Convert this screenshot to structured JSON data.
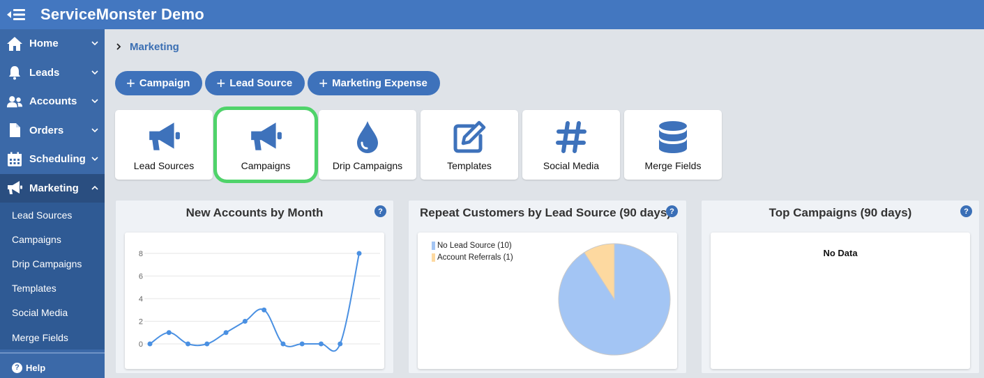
{
  "app": {
    "title": "ServiceMonster Demo"
  },
  "sidebar": {
    "items": [
      {
        "label": "Home",
        "icon": "home-icon"
      },
      {
        "label": "Leads",
        "icon": "bell-icon"
      },
      {
        "label": "Accounts",
        "icon": "users-icon"
      },
      {
        "label": "Orders",
        "icon": "file-icon"
      },
      {
        "label": "Scheduling",
        "icon": "calendar-icon"
      },
      {
        "label": "Marketing",
        "icon": "megaphone-icon"
      }
    ],
    "subitems": [
      "Lead Sources",
      "Campaigns",
      "Drip Campaigns",
      "Templates",
      "Social Media",
      "Merge Fields"
    ],
    "help_label": "Help",
    "help_icon_text": "?"
  },
  "breadcrumb": {
    "current": "Marketing"
  },
  "actions": [
    "Campaign",
    "Lead Source",
    "Marketing Expense"
  ],
  "tiles": [
    {
      "label": "Lead Sources",
      "icon": "megaphone-icon"
    },
    {
      "label": "Campaigns",
      "icon": "megaphone-icon"
    },
    {
      "label": "Drip Campaigns",
      "icon": "droplet-icon"
    },
    {
      "label": "Templates",
      "icon": "edit-icon"
    },
    {
      "label": "Social Media",
      "icon": "hashtag-icon"
    },
    {
      "label": "Merge Fields",
      "icon": "database-icon"
    }
  ],
  "panels": {
    "new_accounts": {
      "title": "New Accounts by Month"
    },
    "repeat_customers": {
      "title": "Repeat Customers by Lead Source (90 days)"
    },
    "top_campaigns": {
      "title": "Top Campaigns (90 days)",
      "empty_text": "No Data"
    }
  },
  "colors": {
    "topbar": "#4377c0",
    "sidebar": "#3b69a8",
    "accent": "#3e72bb",
    "selected_outline": "#4fd36a",
    "line": "#4a90e2",
    "pie_primary": "#a3c5f4",
    "pie_secondary": "#fdd9a0"
  },
  "chart_data": [
    {
      "type": "line",
      "title": "New Accounts by Month",
      "x": [
        1,
        2,
        3,
        4,
        5,
        6,
        7,
        8,
        9,
        10,
        11,
        12
      ],
      "values": [
        0,
        1,
        0,
        0,
        1,
        2,
        3,
        0,
        0,
        0,
        0,
        8
      ],
      "yticks": [
        "0",
        "2",
        "4",
        "6",
        "8"
      ],
      "ylim": [
        0,
        8
      ],
      "grid": true,
      "xlabel": "",
      "ylabel": ""
    },
    {
      "type": "pie",
      "title": "Repeat Customers by Lead Source (90 days)",
      "slices": [
        {
          "label": "No Lead Source (10)",
          "value": 10,
          "color": "#a3c5f4"
        },
        {
          "label": "Account Referrals (1)",
          "value": 1,
          "color": "#fdd9a0"
        }
      ],
      "legend": "top-left"
    }
  ]
}
